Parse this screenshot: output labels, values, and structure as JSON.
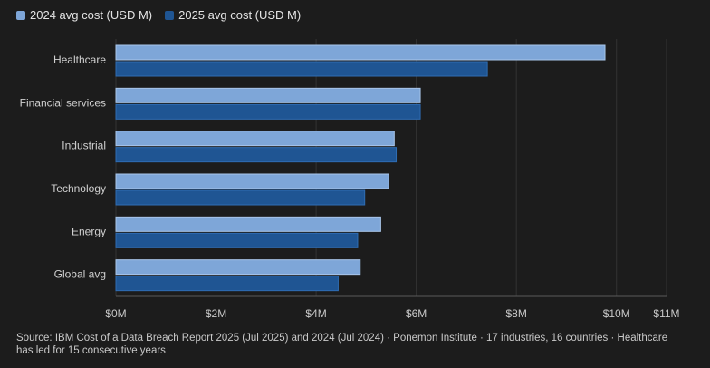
{
  "chart_data": {
    "type": "bar",
    "orientation": "horizontal",
    "categories": [
      "Healthcare",
      "Financial services",
      "Industrial",
      "Technology",
      "Energy",
      "Global avg"
    ],
    "series": [
      {
        "name": "2024 avg cost (USD M)",
        "color": "#7ea6d8",
        "values": [
          9.77,
          6.08,
          5.56,
          5.45,
          5.29,
          4.88
        ]
      },
      {
        "name": "2025 avg cost (USD M)",
        "color": "#1f5593",
        "values": [
          7.42,
          6.08,
          5.6,
          4.97,
          4.83,
          4.44
        ]
      }
    ],
    "xlim": [
      0,
      11
    ],
    "xticks": [
      {
        "value": 0,
        "label": "$0M"
      },
      {
        "value": 2,
        "label": "$2M"
      },
      {
        "value": 4,
        "label": "$4M"
      },
      {
        "value": 6,
        "label": "$6M"
      },
      {
        "value": 8,
        "label": "$8M"
      },
      {
        "value": 10,
        "label": "$10M"
      },
      {
        "value": 11,
        "label": "$11M"
      }
    ],
    "grid": true,
    "legend_position": "top-left"
  },
  "source": "Source: IBM Cost of a Data Breach Report 2025 (Jul 2025) and 2024 (Jul 2024) · Ponemon Institute · 17 industries, 16 countries · Healthcare has led for 15 consecutive years"
}
